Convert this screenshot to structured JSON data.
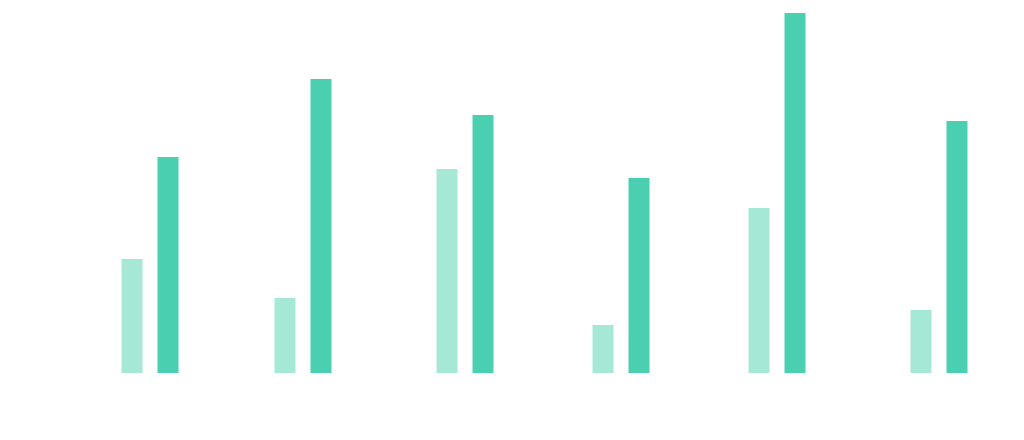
{
  "chart_data": {
    "type": "bar",
    "categories": [
      "",
      "",
      "",
      "",
      "",
      ""
    ],
    "series": [
      {
        "values": [
          19,
          12.5,
          34,
          8,
          27.5,
          10.5
        ],
        "color": "#a5e8d5"
      },
      {
        "values": [
          36,
          49,
          43,
          32.5,
          60,
          42
        ],
        "color": "#4acfb0"
      }
    ],
    "ylim": [
      0,
      60
    ],
    "grid": false,
    "legend": "none",
    "title": "",
    "xlabel": "",
    "ylabel": ""
  }
}
